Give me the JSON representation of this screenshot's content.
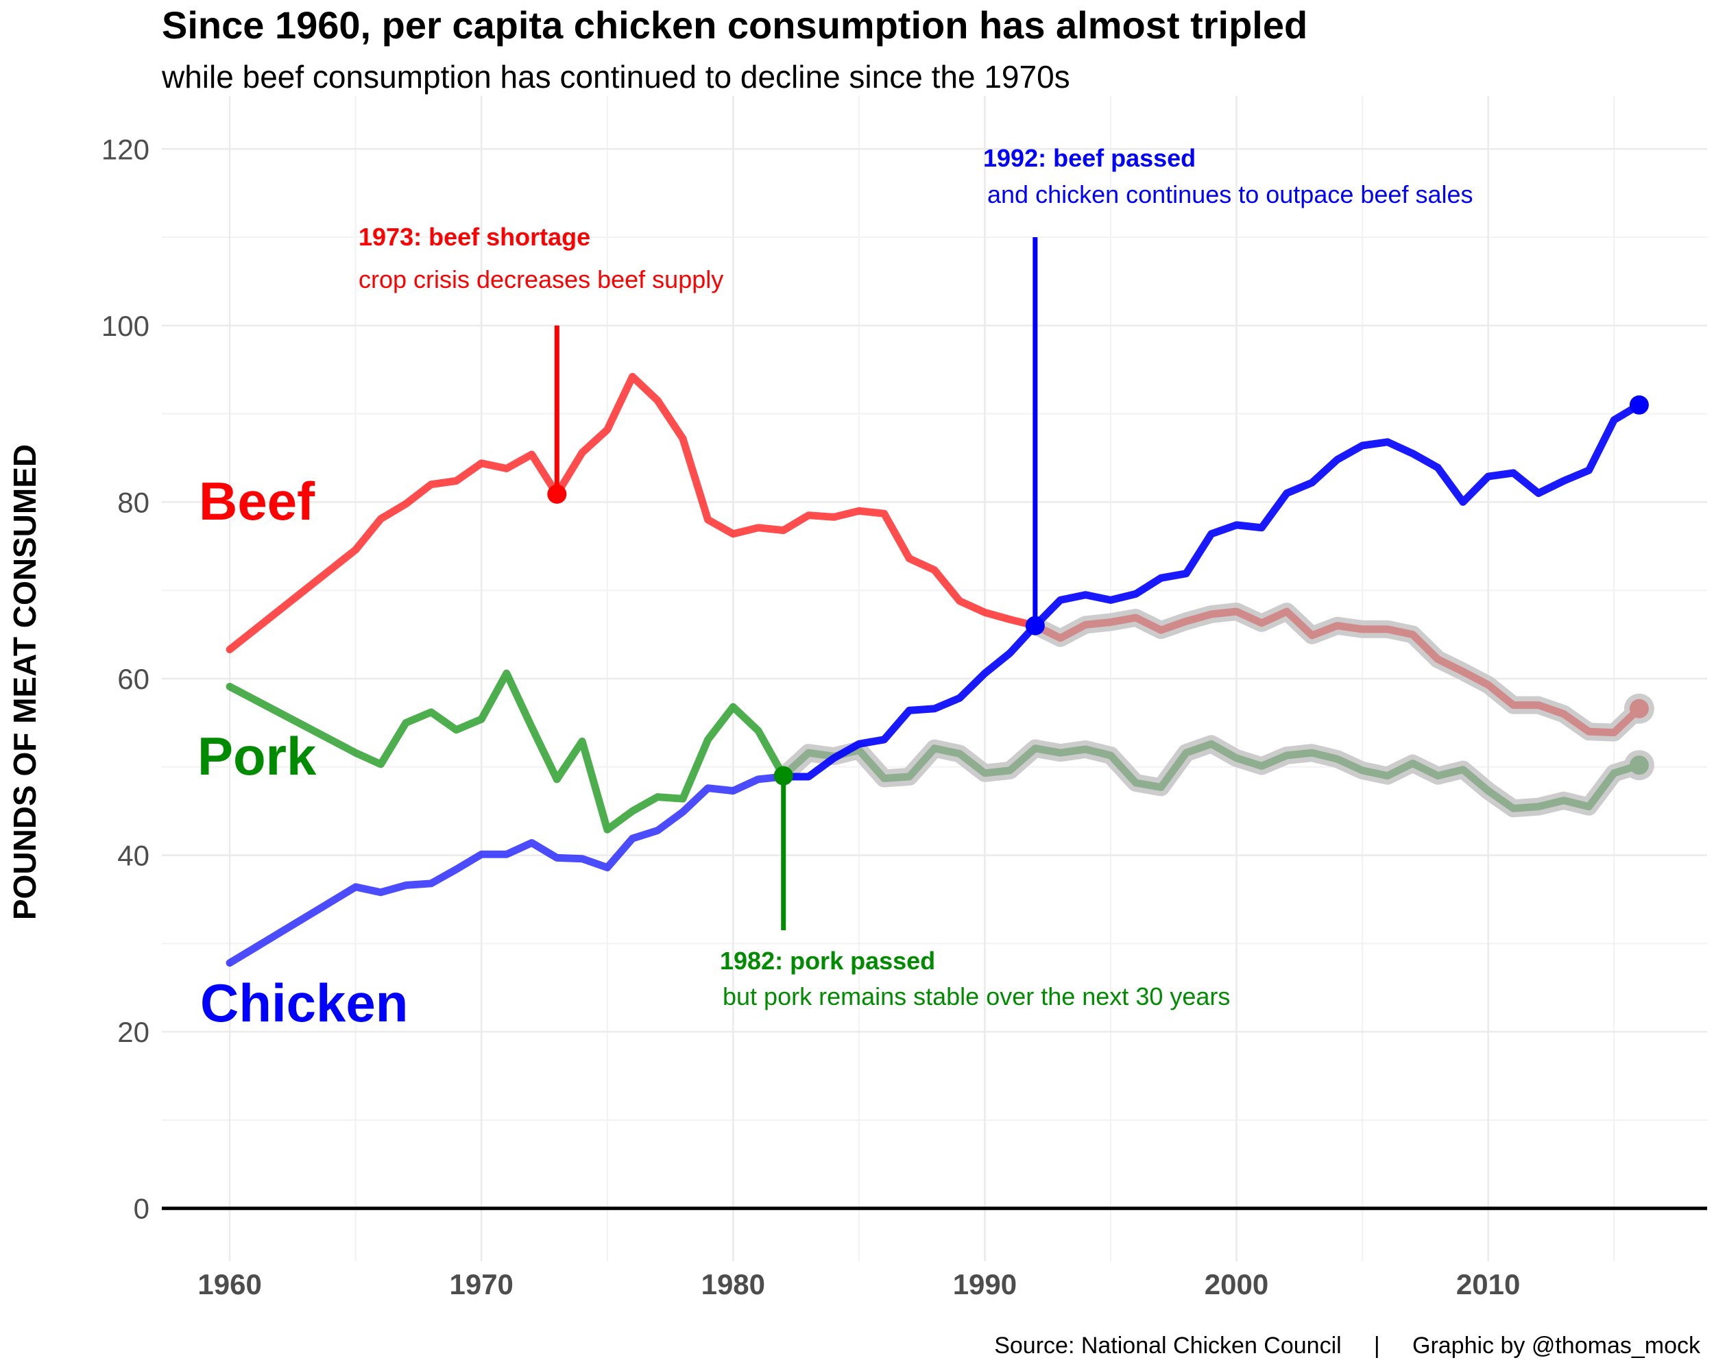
{
  "chart_data": {
    "type": "line",
    "title": "Since 1960, per capita chicken consumption has almost tripled",
    "subtitle": "while beef consumption has continued to decline since the 1970s",
    "xlabel": "",
    "ylabel": "POUNDS OF MEAT CONSUMED",
    "xlim": [
      1957.3,
      2018.7
    ],
    "ylim": [
      -6,
      126
    ],
    "x_ticks": [
      1960,
      1970,
      1980,
      1990,
      2000,
      2010
    ],
    "y_ticks": [
      0,
      20,
      40,
      60,
      80,
      100,
      120
    ],
    "grid": true,
    "caption": "Source: National Chicken Council     |     Graphic by @thomas_mock",
    "colors": {
      "beef": "#ff0000",
      "pork": "#008b00",
      "chicken": "#0000ff",
      "faded_beef": "#d08a8a",
      "faded_pork": "#8fae8f",
      "halo": "#cccccc"
    },
    "series": [
      {
        "name": "Beef",
        "key": "beef",
        "x": [
          1960,
          1965,
          1966,
          1967,
          1968,
          1969,
          1970,
          1971,
          1972,
          1973,
          1974,
          1975,
          1976,
          1977,
          1978,
          1979,
          1980,
          1981,
          1982,
          1983,
          1984,
          1985,
          1986,
          1987,
          1988,
          1989,
          1990,
          1991,
          1992,
          1993,
          1994,
          1995,
          1996,
          1997,
          1998,
          1999,
          2000,
          2001,
          2002,
          2003,
          2004,
          2005,
          2006,
          2007,
          2008,
          2009,
          2010,
          2011,
          2012,
          2013,
          2014,
          2015,
          2016
        ],
        "values": [
          63.3,
          74.6,
          78.1,
          79.8,
          82.0,
          82.4,
          84.4,
          83.8,
          85.4,
          80.9,
          85.6,
          88.2,
          94.2,
          91.5,
          87.2,
          78.0,
          76.4,
          77.1,
          76.8,
          78.5,
          78.3,
          79.0,
          78.7,
          73.6,
          72.3,
          68.8,
          67.5,
          66.7,
          66.0,
          64.6,
          66.1,
          66.4,
          66.9,
          65.5,
          66.5,
          67.3,
          67.6,
          66.3,
          67.6,
          64.9,
          66.0,
          65.6,
          65.6,
          65.0,
          62.2,
          60.8,
          59.3,
          57.0,
          57.0,
          56.0,
          54.0,
          53.9,
          56.6
        ],
        "highlight_until": 1992,
        "end_label": "Beef"
      },
      {
        "name": "Pork",
        "key": "pork",
        "x": [
          1960,
          1965,
          1966,
          1967,
          1968,
          1969,
          1970,
          1971,
          1972,
          1973,
          1974,
          1975,
          1976,
          1977,
          1978,
          1979,
          1980,
          1981,
          1982,
          1983,
          1984,
          1985,
          1986,
          1987,
          1988,
          1989,
          1990,
          1991,
          1992,
          1993,
          1994,
          1995,
          1996,
          1997,
          1998,
          1999,
          2000,
          2001,
          2002,
          2003,
          2004,
          2005,
          2006,
          2007,
          2008,
          2009,
          2010,
          2011,
          2012,
          2013,
          2014,
          2015,
          2016
        ],
        "values": [
          59.1,
          51.6,
          50.3,
          55.0,
          56.2,
          54.2,
          55.4,
          60.6,
          54.5,
          48.6,
          52.9,
          42.9,
          45.0,
          46.6,
          46.4,
          53.1,
          56.8,
          54.1,
          49.0,
          51.6,
          51.2,
          51.9,
          48.7,
          48.9,
          52.1,
          51.5,
          49.3,
          49.6,
          52.1,
          51.6,
          52.0,
          51.3,
          48.2,
          47.7,
          51.6,
          52.6,
          51.0,
          50.1,
          51.3,
          51.6,
          50.9,
          49.6,
          49.0,
          50.4,
          49.0,
          49.7,
          47.3,
          45.3,
          45.5,
          46.2,
          45.5,
          49.3,
          50.2
        ],
        "highlight_until": 1982,
        "end_label": "Pork"
      },
      {
        "name": "Chicken",
        "key": "chicken",
        "x": [
          1960,
          1965,
          1966,
          1967,
          1968,
          1969,
          1970,
          1971,
          1972,
          1973,
          1974,
          1975,
          1976,
          1977,
          1978,
          1979,
          1980,
          1981,
          1982,
          1983,
          1984,
          1985,
          1986,
          1987,
          1988,
          1989,
          1990,
          1991,
          1992,
          1993,
          1994,
          1995,
          1996,
          1997,
          1998,
          1999,
          2000,
          2001,
          2002,
          2003,
          2004,
          2005,
          2006,
          2007,
          2008,
          2009,
          2010,
          2011,
          2012,
          2013,
          2014,
          2015,
          2016
        ],
        "values": [
          27.8,
          36.4,
          35.8,
          36.6,
          36.8,
          38.4,
          40.1,
          40.1,
          41.4,
          39.7,
          39.6,
          38.6,
          41.9,
          42.8,
          44.9,
          47.6,
          47.3,
          48.6,
          48.9,
          48.9,
          51.0,
          52.6,
          53.1,
          56.4,
          56.6,
          57.8,
          60.6,
          62.9,
          66.0,
          68.9,
          69.5,
          68.9,
          69.6,
          71.4,
          71.9,
          76.4,
          77.4,
          77.1,
          81.0,
          82.2,
          84.8,
          86.4,
          86.8,
          85.5,
          83.9,
          80.0,
          82.9,
          83.3,
          81.0,
          82.4,
          83.6,
          89.3,
          91.0
        ],
        "end_label": "Chicken"
      }
    ],
    "annotations": [
      {
        "key": "beef",
        "year": 1973,
        "point_value": 80.9,
        "line_top": 100,
        "heading": "1973: beef shortage",
        "body": "crop crisis decreases beef supply"
      },
      {
        "key": "pork",
        "year": 1982,
        "point_value": 49.0,
        "line_bottom": 31.5,
        "heading": "1982: pork passed",
        "body": "but pork remains stable over the next 30 years"
      },
      {
        "key": "chicken",
        "year": 1992,
        "point_value": 66.0,
        "line_top": 110,
        "heading": "1992: beef passed",
        "body": "and chicken continues to outpace beef sales"
      }
    ]
  }
}
